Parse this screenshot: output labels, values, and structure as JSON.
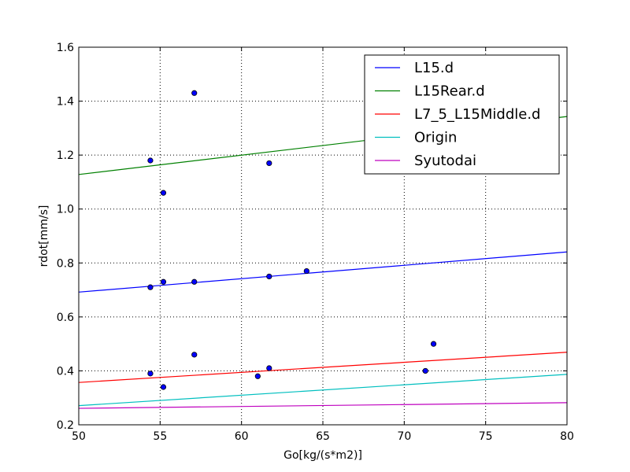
{
  "chart_data": {
    "type": "scatter",
    "xlabel": "Go[kg/(s*m2)]",
    "ylabel": "rdot[mm/s]",
    "xlim": [
      50,
      80
    ],
    "ylim": [
      0.2,
      1.6
    ],
    "xticks": [
      50,
      55,
      60,
      65,
      70,
      75,
      80
    ],
    "yticks": [
      0.2,
      0.4,
      0.6,
      0.8,
      1.0,
      1.2,
      1.4,
      1.6
    ],
    "xtick_labels": [
      "50",
      "55",
      "60",
      "65",
      "70",
      "75",
      "80"
    ],
    "ytick_labels": [
      "0.2",
      "0.4",
      "0.6",
      "0.8",
      "1.0",
      "1.2",
      "1.4",
      "1.6"
    ],
    "grid": true,
    "legend_position": "top-right",
    "scatter": {
      "color": "#0000ff",
      "points": [
        {
          "x": 54.4,
          "y": 1.18
        },
        {
          "x": 55.2,
          "y": 1.06
        },
        {
          "x": 57.1,
          "y": 1.43
        },
        {
          "x": 61.7,
          "y": 1.17
        },
        {
          "x": 54.4,
          "y": 0.71
        },
        {
          "x": 55.2,
          "y": 0.73
        },
        {
          "x": 57.1,
          "y": 0.73
        },
        {
          "x": 61.7,
          "y": 0.75
        },
        {
          "x": 64.0,
          "y": 0.77
        },
        {
          "x": 54.4,
          "y": 0.39
        },
        {
          "x": 55.2,
          "y": 0.34
        },
        {
          "x": 57.1,
          "y": 0.46
        },
        {
          "x": 61.0,
          "y": 0.38
        },
        {
          "x": 61.7,
          "y": 0.41
        },
        {
          "x": 71.3,
          "y": 0.4
        },
        {
          "x": 71.8,
          "y": 0.5
        }
      ]
    },
    "series": [
      {
        "name": "L15.d",
        "color": "#0000ff",
        "x": [
          50,
          80
        ],
        "y": [
          0.692,
          0.841
        ]
      },
      {
        "name": "L15Rear.d",
        "color": "#008000",
        "x": [
          50,
          80
        ],
        "y": [
          1.128,
          1.343
        ]
      },
      {
        "name": "L7_5_L15Middle.d",
        "color": "#ff0000",
        "x": [
          50,
          80
        ],
        "y": [
          0.357,
          0.469
        ]
      },
      {
        "name": "Origin",
        "color": "#00bfbf",
        "x": [
          50,
          80
        ],
        "y": [
          0.271,
          0.387
        ]
      },
      {
        "name": "Syutodai",
        "color": "#bf00bf",
        "x": [
          50,
          80
        ],
        "y": [
          0.261,
          0.282
        ]
      }
    ]
  }
}
